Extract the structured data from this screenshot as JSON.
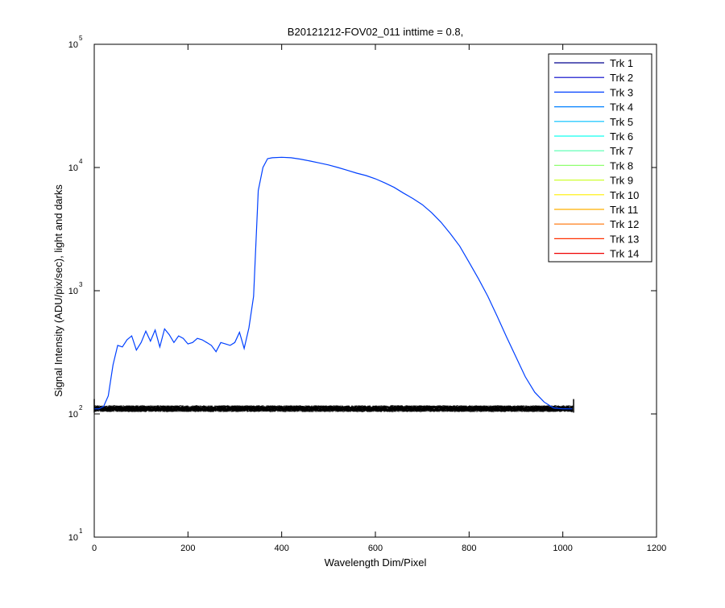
{
  "chart_data": {
    "type": "line",
    "title": "B20121212-FOV02_011 inttime = 0.8,",
    "xlabel": "Wavelength Dim/Pixel",
    "ylabel": "Signal Intensity (ADU/pix/sec), light and darks",
    "xlim": [
      0,
      1200
    ],
    "ylim": [
      10,
      100000
    ],
    "yscale": "log",
    "grid": false,
    "legend_position": "top-right",
    "x_ticks": [
      0,
      200,
      400,
      600,
      800,
      1000,
      1200
    ],
    "y_ticks": [
      {
        "value": 10,
        "base": "10",
        "exp": "1"
      },
      {
        "value": 100,
        "base": "10",
        "exp": "2"
      },
      {
        "value": 1000,
        "base": "10",
        "exp": "3"
      },
      {
        "value": 10000,
        "base": "10",
        "exp": "4"
      },
      {
        "value": 100000,
        "base": "10",
        "exp": "5"
      }
    ],
    "series": [
      {
        "name": "Trk 1",
        "color": "#00008f"
      },
      {
        "name": "Trk 2",
        "color": "#0000c8"
      },
      {
        "name": "Trk 3",
        "color": "#0040ff",
        "x": [
          0,
          10,
          20,
          30,
          40,
          50,
          60,
          70,
          80,
          90,
          100,
          110,
          120,
          130,
          140,
          150,
          160,
          170,
          180,
          190,
          200,
          210,
          220,
          230,
          240,
          250,
          260,
          270,
          280,
          290,
          300,
          310,
          320,
          330,
          340,
          350,
          360,
          370,
          380,
          400,
          420,
          440,
          460,
          480,
          500,
          520,
          540,
          560,
          580,
          600,
          620,
          640,
          660,
          680,
          700,
          720,
          740,
          760,
          780,
          800,
          820,
          840,
          860,
          880,
          900,
          920,
          940,
          960,
          980,
          1000,
          1020
        ],
        "values": [
          110,
          110,
          115,
          140,
          250,
          360,
          350,
          400,
          430,
          330,
          380,
          470,
          390,
          480,
          350,
          490,
          440,
          380,
          430,
          410,
          370,
          380,
          410,
          400,
          380,
          360,
          320,
          380,
          370,
          360,
          380,
          460,
          340,
          500,
          900,
          6500,
          10000,
          11800,
          12000,
          12100,
          12000,
          11700,
          11300,
          10900,
          10500,
          10000,
          9500,
          9000,
          8600,
          8100,
          7500,
          6900,
          6200,
          5600,
          5000,
          4300,
          3600,
          2900,
          2300,
          1700,
          1250,
          900,
          620,
          420,
          290,
          200,
          150,
          125,
          112,
          110,
          110
        ]
      },
      {
        "name": "Trk 4",
        "color": "#0080ff"
      },
      {
        "name": "Trk 5",
        "color": "#00c0ff"
      },
      {
        "name": "Trk 6",
        "color": "#10ffef"
      },
      {
        "name": "Trk 7",
        "color": "#50ffaf"
      },
      {
        "name": "Trk 8",
        "color": "#8fff70"
      },
      {
        "name": "Trk 9",
        "color": "#cfff30"
      },
      {
        "name": "Trk 10",
        "color": "#ffef00"
      },
      {
        "name": "Trk 11",
        "color": "#ffb000"
      },
      {
        "name": "Trk 12",
        "color": "#ff7000"
      },
      {
        "name": "Trk 13",
        "color": "#ff3000"
      },
      {
        "name": "Trk 14",
        "color": "#ef0000"
      }
    ],
    "dark_band": {
      "y_low": 104,
      "y_high": 117,
      "x_start": 0,
      "x_end": 1023
    }
  }
}
